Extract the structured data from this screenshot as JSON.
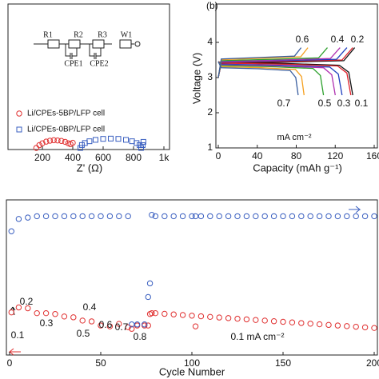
{
  "chart_data": [
    {
      "type": "scatter",
      "x_label": "Z' (Ω)",
      "xlim": [
        0,
        1000
      ],
      "ylim": [
        0,
        3000
      ],
      "xticks": [
        200,
        400,
        600,
        800,
        {
          "value": 1000,
          "label": "1k"
        }
      ],
      "circuit": [
        "R1",
        "R2",
        "R3",
        "W1",
        "CPE1",
        "CPE2"
      ],
      "series": [
        {
          "name": "Li/CPEs-5BP/LFP cell",
          "color": "#e03030",
          "marker": "circle",
          "x": [
            160,
            180,
            200,
            225,
            250,
            275,
            300,
            325,
            350,
            370,
            385,
            400
          ],
          "values": [
            0,
            60,
            100,
            135,
            155,
            165,
            160,
            150,
            130,
            100,
            80,
            110
          ]
        },
        {
          "name": "Li/CPEs-0BP/LFP cell",
          "color": "#3a5fc0",
          "marker": "square",
          "x": [
            450,
            460,
            480,
            510,
            550,
            600,
            650,
            700,
            750,
            790,
            820,
            840,
            850,
            860,
            865
          ],
          "values": [
            0,
            62,
            105,
            143,
            173,
            194,
            200,
            194,
            173,
            143,
            105,
            62,
            0,
            60,
            130
          ]
        }
      ]
    },
    {
      "type": "line",
      "label": "(b)",
      "x_label": "Capacity (mAh g⁻¹)",
      "y_label": "Voltage (V)",
      "unit": "mA cm⁻²",
      "xlim": [
        0,
        160
      ],
      "ylim": [
        1,
        5
      ],
      "xticks": [
        0,
        40,
        80,
        120,
        160
      ],
      "yticks": [
        1,
        2,
        3,
        4
      ],
      "series": [
        {
          "name": "0.1",
          "color": "#111111",
          "x": [
            0,
            3,
            70,
            128.8,
            140,
            null,
            0,
            3,
            69,
            124.2,
            133.9,
            138
          ],
          "values": [
            3.0,
            3.4,
            3.44,
            3.48,
            3.85,
            null,
            3.45,
            3.43,
            3.4,
            3.35,
            3.15,
            2.5
          ]
        },
        {
          "name": "0.2",
          "color": "#e0202a",
          "x": [
            0,
            3,
            69,
            127,
            138,
            null,
            0,
            3,
            68,
            122.4,
            131.9,
            136
          ],
          "values": [
            3.0,
            3.42,
            3.46,
            3.5,
            3.85,
            null,
            3.45,
            3.41,
            3.38,
            3.33,
            3.13,
            2.5
          ]
        },
        {
          "name": "0.3",
          "color": "#1f3fbf",
          "x": [
            0,
            3,
            66,
            121.4,
            132,
            null,
            0,
            3,
            63.5,
            114.3,
            123.2,
            127
          ],
          "values": [
            3.0,
            3.44,
            3.48,
            3.52,
            3.85,
            null,
            3.45,
            3.38,
            3.35,
            3.3,
            3.1,
            2.5
          ]
        },
        {
          "name": "0.4",
          "color": "#b030b0",
          "x": [
            0,
            3,
            62.5,
            115,
            125,
            null,
            0,
            3,
            60,
            108,
            116.4,
            120
          ],
          "values": [
            3.0,
            3.46,
            3.5,
            3.54,
            3.85,
            null,
            3.45,
            3.36,
            3.33,
            3.28,
            3.08,
            2.5
          ]
        },
        {
          "name": "0.5",
          "color": "#2ca02c",
          "x": [
            0,
            3,
            56,
            103,
            112,
            null,
            0,
            3,
            54,
            97.2,
            104.8,
            108
          ],
          "values": [
            3.0,
            3.48,
            3.52,
            3.56,
            3.85,
            null,
            3.45,
            3.34,
            3.31,
            3.26,
            3.06,
            2.5
          ]
        },
        {
          "name": "0.6",
          "color": "#f5a020",
          "x": [
            0,
            3,
            46,
            84.6,
            92,
            null,
            0,
            3,
            44,
            79.2,
            85.4,
            88
          ],
          "values": [
            3.0,
            3.51,
            3.55,
            3.59,
            3.85,
            null,
            3.45,
            3.31,
            3.28,
            3.23,
            3.03,
            2.5
          ]
        },
        {
          "name": "0.7",
          "color": "#3a5fa0",
          "x": [
            0,
            3,
            42.5,
            78.2,
            85,
            null,
            0,
            3,
            41,
            73.8,
            79.5,
            82
          ],
          "values": [
            3.0,
            3.53,
            3.57,
            3.61,
            3.85,
            null,
            3.45,
            3.28,
            3.25,
            3.2,
            3.0,
            2.5
          ]
        }
      ]
    },
    {
      "type": "scatter",
      "x_label": "Cycle Number",
      "xlim": [
        0,
        200
      ],
      "ylim": [
        0,
        180
      ],
      "y2lim": [
        0,
        108
      ],
      "xticks": [
        0,
        50,
        100,
        150,
        200
      ],
      "annotations": [
        "0.1",
        "0.2",
        "0.3",
        "0.4",
        "0.5",
        "0.6",
        "0.7",
        "0.8",
        "0.1 mA cm⁻²"
      ],
      "x": [
        1,
        5,
        10,
        15,
        20,
        25,
        30,
        35,
        40,
        45,
        50,
        55,
        60,
        65,
        67,
        70,
        74,
        76,
        77,
        78,
        80,
        85,
        90,
        95,
        100,
        102,
        105,
        110,
        115,
        120,
        125,
        130,
        135,
        140,
        145,
        150,
        155,
        160,
        165,
        170,
        175,
        180,
        185,
        190,
        195,
        200
      ],
      "series": [
        {
          "color": "#e03030",
          "marker": "circle",
          "axis": "y",
          "values": [
            48,
            54,
            53,
            47,
            47,
            46,
            43,
            42,
            38,
            37,
            32,
            31,
            34,
            30,
            28,
            32,
            32,
            32,
            46,
            47,
            47,
            46.25,
            45.5,
            44.75,
            44,
            31,
            43.25,
            42.5,
            41.75,
            41,
            40.25,
            39.5,
            38.75,
            38,
            37.25,
            36.5,
            35.75,
            35,
            34.25,
            33.5,
            32.75,
            32,
            31.25,
            30.5,
            29.75,
            29
          ]
        },
        {
          "color": "#3a5fc0",
          "marker": "circle",
          "axis": "y2",
          "values": [
            88,
            97,
            98,
            99,
            99,
            99,
            99,
            99,
            99,
            99,
            99,
            99,
            99,
            99,
            20,
            20,
            20,
            40,
            50,
            100,
            99,
            99,
            99,
            99,
            99,
            99,
            99,
            99,
            99,
            99,
            99,
            99,
            99,
            99,
            99,
            99,
            99,
            99,
            99,
            99,
            99,
            99,
            99,
            99,
            99,
            99
          ]
        }
      ]
    }
  ]
}
